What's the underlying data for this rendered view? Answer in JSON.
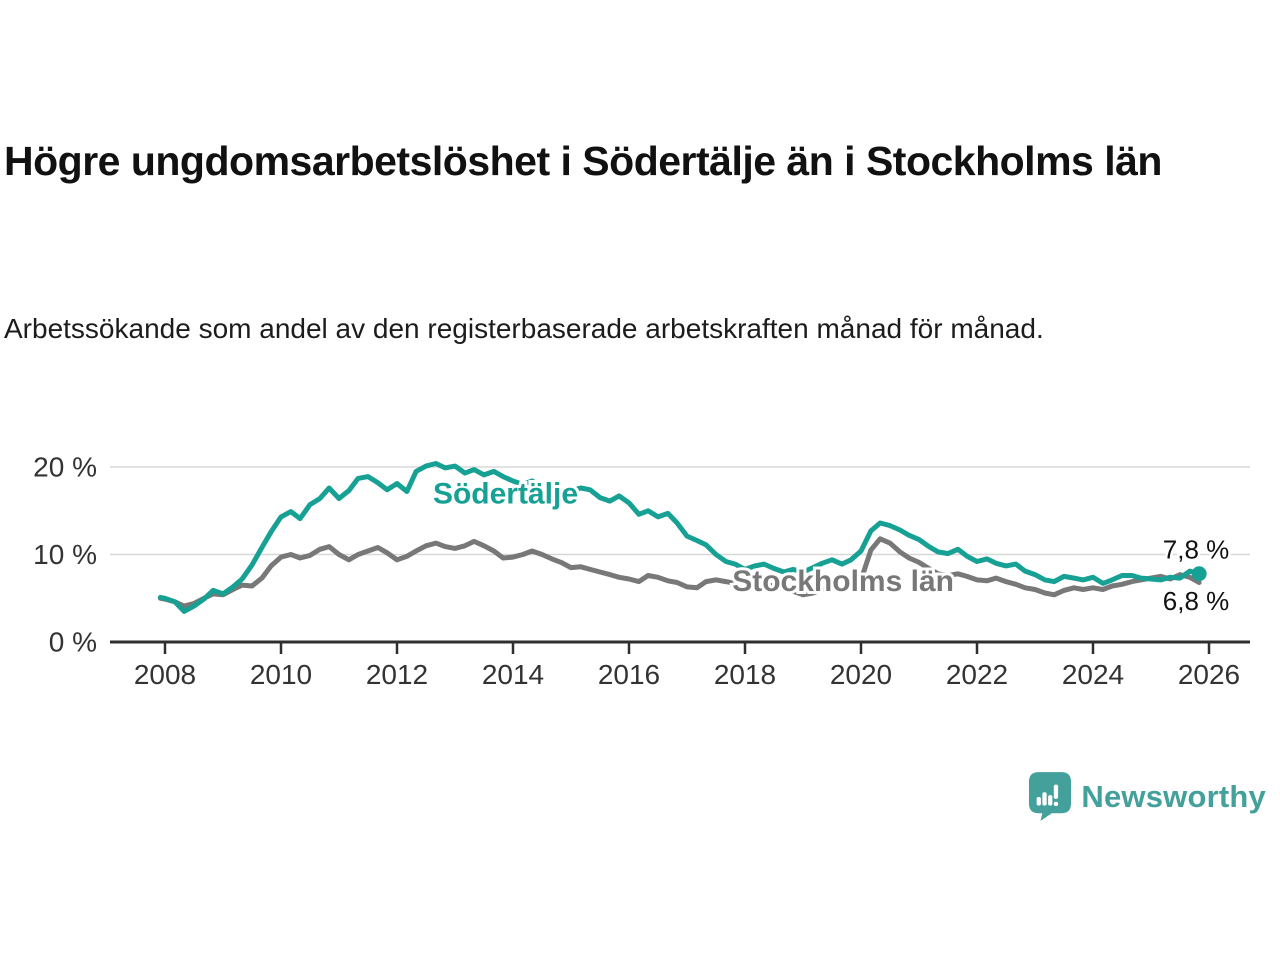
{
  "title": "Högre ungdomsarbetslöshet i Södertälje än i Stockholms län",
  "subtitle": "Arbetssökande som andel av den registerbaserade arbetskraften månad för månad.",
  "branding": {
    "name": "Newsworthy",
    "icon": "bar-chart-speech-bubble-icon",
    "color": "#43a09b"
  },
  "chart_data": {
    "type": "line",
    "title": "Högre ungdomsarbetslöshet i Södertälje än i Stockholms län",
    "xlabel": "",
    "ylabel": "Arbetssökande som andel av den registerbaserade arbetskraften",
    "grid": "horizontal",
    "grid_color": "#d8d8d8",
    "axis_color": "#2f2f2f",
    "tick_label_color": "#333333",
    "value_label_color": "#111111",
    "x_axis": {
      "min": 2007.05,
      "max": 2026.7,
      "ticks": [
        2008,
        2010,
        2012,
        2014,
        2016,
        2018,
        2020,
        2022,
        2024,
        2026
      ]
    },
    "y_axis": {
      "min": 0,
      "max": 22,
      "ticks": [
        {
          "value": 0,
          "label": "0 %"
        },
        {
          "value": 10,
          "label": "10 %"
        },
        {
          "value": 20,
          "label": "20 %"
        }
      ]
    },
    "series": [
      {
        "name": "Stockholms län",
        "color": "#787878",
        "end_dot": false,
        "label_pos": {
          "x": 2017.78,
          "y": 6.9
        },
        "end_label": {
          "text": "6,8 %",
          "x": 2026.35,
          "y": 4.7
        },
        "points": [
          [
            2007.92,
            5.0
          ],
          [
            2008.0,
            4.9
          ],
          [
            2008.17,
            4.6
          ],
          [
            2008.33,
            4.1
          ],
          [
            2008.5,
            4.4
          ],
          [
            2008.67,
            5.0
          ],
          [
            2008.83,
            5.5
          ],
          [
            2009.0,
            5.4
          ],
          [
            2009.17,
            6.0
          ],
          [
            2009.33,
            6.5
          ],
          [
            2009.5,
            6.4
          ],
          [
            2009.67,
            7.3
          ],
          [
            2009.83,
            8.7
          ],
          [
            2010.0,
            9.7
          ],
          [
            2010.17,
            10.0
          ],
          [
            2010.33,
            9.6
          ],
          [
            2010.5,
            9.9
          ],
          [
            2010.67,
            10.6
          ],
          [
            2010.83,
            10.9
          ],
          [
            2011.0,
            10.0
          ],
          [
            2011.17,
            9.4
          ],
          [
            2011.33,
            10.0
          ],
          [
            2011.5,
            10.4
          ],
          [
            2011.67,
            10.8
          ],
          [
            2011.83,
            10.2
          ],
          [
            2012.0,
            9.4
          ],
          [
            2012.17,
            9.8
          ],
          [
            2012.33,
            10.4
          ],
          [
            2012.5,
            11.0
          ],
          [
            2012.67,
            11.3
          ],
          [
            2012.83,
            10.9
          ],
          [
            2013.0,
            10.7
          ],
          [
            2013.17,
            11.0
          ],
          [
            2013.33,
            11.5
          ],
          [
            2013.5,
            11.0
          ],
          [
            2013.67,
            10.4
          ],
          [
            2013.83,
            9.6
          ],
          [
            2014.0,
            9.7
          ],
          [
            2014.17,
            10.0
          ],
          [
            2014.33,
            10.4
          ],
          [
            2014.5,
            10.0
          ],
          [
            2014.67,
            9.5
          ],
          [
            2014.83,
            9.1
          ],
          [
            2015.0,
            8.5
          ],
          [
            2015.17,
            8.6
          ],
          [
            2015.33,
            8.3
          ],
          [
            2015.5,
            8.0
          ],
          [
            2015.67,
            7.7
          ],
          [
            2015.83,
            7.4
          ],
          [
            2016.0,
            7.2
          ],
          [
            2016.17,
            6.9
          ],
          [
            2016.33,
            7.6
          ],
          [
            2016.5,
            7.4
          ],
          [
            2016.67,
            7.0
          ],
          [
            2016.83,
            6.8
          ],
          [
            2017.0,
            6.3
          ],
          [
            2017.17,
            6.2
          ],
          [
            2017.33,
            6.9
          ],
          [
            2017.5,
            7.1
          ],
          [
            2017.67,
            6.9
          ],
          [
            2017.83,
            6.7
          ],
          [
            2018.0,
            6.4
          ],
          [
            2018.17,
            6.3
          ],
          [
            2018.33,
            6.6
          ],
          [
            2018.5,
            6.4
          ],
          [
            2018.67,
            6.1
          ],
          [
            2018.83,
            5.8
          ],
          [
            2019.0,
            5.4
          ],
          [
            2019.17,
            5.6
          ],
          [
            2019.33,
            6.0
          ],
          [
            2019.5,
            6.2
          ],
          [
            2019.67,
            6.0
          ],
          [
            2019.83,
            6.4
          ],
          [
            2020.0,
            7.1
          ],
          [
            2020.17,
            10.5
          ],
          [
            2020.33,
            11.8
          ],
          [
            2020.5,
            11.3
          ],
          [
            2020.67,
            10.3
          ],
          [
            2020.83,
            9.6
          ],
          [
            2021.0,
            9.1
          ],
          [
            2021.17,
            8.4
          ],
          [
            2021.33,
            7.8
          ],
          [
            2021.5,
            7.6
          ],
          [
            2021.67,
            7.8
          ],
          [
            2021.83,
            7.5
          ],
          [
            2022.0,
            7.1
          ],
          [
            2022.17,
            7.0
          ],
          [
            2022.33,
            7.3
          ],
          [
            2022.5,
            6.9
          ],
          [
            2022.67,
            6.6
          ],
          [
            2022.83,
            6.2
          ],
          [
            2023.0,
            6.0
          ],
          [
            2023.17,
            5.6
          ],
          [
            2023.33,
            5.4
          ],
          [
            2023.5,
            5.9
          ],
          [
            2023.67,
            6.2
          ],
          [
            2023.83,
            6.0
          ],
          [
            2024.0,
            6.2
          ],
          [
            2024.17,
            6.0
          ],
          [
            2024.33,
            6.4
          ],
          [
            2024.5,
            6.6
          ],
          [
            2024.67,
            6.9
          ],
          [
            2024.83,
            7.1
          ],
          [
            2025.0,
            7.3
          ],
          [
            2025.17,
            7.5
          ],
          [
            2025.33,
            7.2
          ],
          [
            2025.5,
            7.7
          ],
          [
            2025.67,
            7.4
          ],
          [
            2025.83,
            6.8
          ]
        ]
      },
      {
        "name": "Södertälje",
        "color": "#16a194",
        "end_dot": true,
        "label_pos": {
          "x": 2012.62,
          "y": 16.9
        },
        "end_label": {
          "text": "7,8 %",
          "x": 2026.35,
          "y": 10.6
        },
        "points": [
          [
            2007.92,
            5.1
          ],
          [
            2008.0,
            5.0
          ],
          [
            2008.17,
            4.6
          ],
          [
            2008.33,
            3.5
          ],
          [
            2008.5,
            4.1
          ],
          [
            2008.67,
            4.9
          ],
          [
            2008.83,
            5.9
          ],
          [
            2009.0,
            5.5
          ],
          [
            2009.17,
            6.3
          ],
          [
            2009.33,
            7.2
          ],
          [
            2009.5,
            8.8
          ],
          [
            2009.67,
            10.8
          ],
          [
            2009.83,
            12.6
          ],
          [
            2010.0,
            14.3
          ],
          [
            2010.17,
            14.9
          ],
          [
            2010.33,
            14.1
          ],
          [
            2010.5,
            15.7
          ],
          [
            2010.67,
            16.4
          ],
          [
            2010.83,
            17.6
          ],
          [
            2011.0,
            16.4
          ],
          [
            2011.17,
            17.3
          ],
          [
            2011.33,
            18.7
          ],
          [
            2011.5,
            18.9
          ],
          [
            2011.67,
            18.2
          ],
          [
            2011.83,
            17.4
          ],
          [
            2012.0,
            18.1
          ],
          [
            2012.17,
            17.2
          ],
          [
            2012.33,
            19.5
          ],
          [
            2012.5,
            20.1
          ],
          [
            2012.67,
            20.4
          ],
          [
            2012.83,
            19.9
          ],
          [
            2013.0,
            20.1
          ],
          [
            2013.17,
            19.3
          ],
          [
            2013.33,
            19.7
          ],
          [
            2013.5,
            19.1
          ],
          [
            2013.67,
            19.5
          ],
          [
            2013.83,
            18.9
          ],
          [
            2014.0,
            18.4
          ],
          [
            2014.17,
            18.0
          ],
          [
            2014.33,
            18.4
          ],
          [
            2014.5,
            17.7
          ],
          [
            2014.67,
            17.3
          ],
          [
            2014.83,
            17.1
          ],
          [
            2015.0,
            17.3
          ],
          [
            2015.17,
            17.6
          ],
          [
            2015.33,
            17.4
          ],
          [
            2015.5,
            16.5
          ],
          [
            2015.67,
            16.1
          ],
          [
            2015.83,
            16.7
          ],
          [
            2016.0,
            15.9
          ],
          [
            2016.17,
            14.6
          ],
          [
            2016.33,
            15.0
          ],
          [
            2016.5,
            14.3
          ],
          [
            2016.67,
            14.7
          ],
          [
            2016.83,
            13.6
          ],
          [
            2017.0,
            12.1
          ],
          [
            2017.17,
            11.6
          ],
          [
            2017.33,
            11.1
          ],
          [
            2017.5,
            10.0
          ],
          [
            2017.67,
            9.2
          ],
          [
            2017.83,
            8.9
          ],
          [
            2018.0,
            8.3
          ],
          [
            2018.17,
            8.7
          ],
          [
            2018.33,
            8.9
          ],
          [
            2018.5,
            8.4
          ],
          [
            2018.67,
            8.0
          ],
          [
            2018.83,
            8.3
          ],
          [
            2019.0,
            8.0
          ],
          [
            2019.17,
            8.5
          ],
          [
            2019.33,
            9.0
          ],
          [
            2019.5,
            9.4
          ],
          [
            2019.67,
            8.9
          ],
          [
            2019.83,
            9.4
          ],
          [
            2020.0,
            10.4
          ],
          [
            2020.17,
            12.7
          ],
          [
            2020.33,
            13.6
          ],
          [
            2020.5,
            13.3
          ],
          [
            2020.67,
            12.8
          ],
          [
            2020.83,
            12.2
          ],
          [
            2021.0,
            11.7
          ],
          [
            2021.17,
            10.9
          ],
          [
            2021.33,
            10.3
          ],
          [
            2021.5,
            10.1
          ],
          [
            2021.67,
            10.6
          ],
          [
            2021.83,
            9.8
          ],
          [
            2022.0,
            9.2
          ],
          [
            2022.17,
            9.5
          ],
          [
            2022.33,
            9.0
          ],
          [
            2022.5,
            8.7
          ],
          [
            2022.67,
            8.9
          ],
          [
            2022.83,
            8.1
          ],
          [
            2023.0,
            7.7
          ],
          [
            2023.17,
            7.1
          ],
          [
            2023.33,
            6.9
          ],
          [
            2023.5,
            7.5
          ],
          [
            2023.67,
            7.3
          ],
          [
            2023.83,
            7.1
          ],
          [
            2024.0,
            7.4
          ],
          [
            2024.17,
            6.7
          ],
          [
            2024.33,
            7.1
          ],
          [
            2024.5,
            7.6
          ],
          [
            2024.67,
            7.6
          ],
          [
            2024.83,
            7.3
          ],
          [
            2025.0,
            7.2
          ],
          [
            2025.17,
            7.1
          ],
          [
            2025.33,
            7.4
          ],
          [
            2025.5,
            7.3
          ],
          [
            2025.67,
            8.1
          ],
          [
            2025.83,
            7.8
          ]
        ]
      }
    ]
  }
}
